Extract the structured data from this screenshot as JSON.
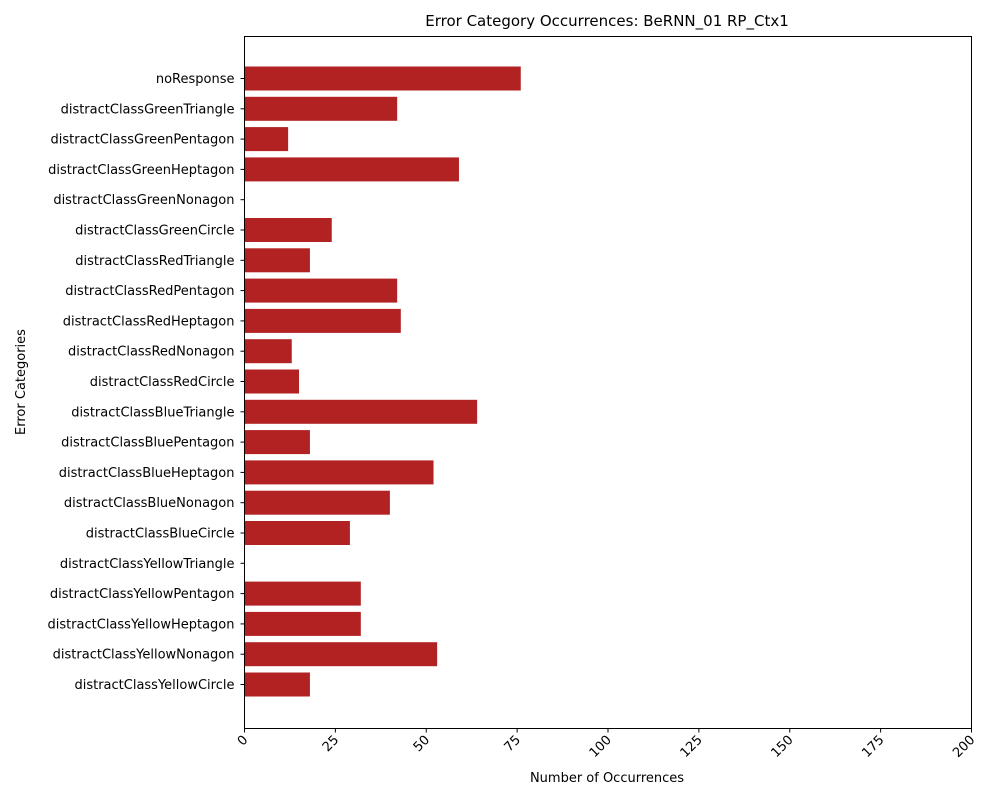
{
  "chart_data": {
    "type": "bar",
    "orientation": "horizontal",
    "title": "Error Category Occurrences: BeRNN_01 RP_Ctx1",
    "xlabel": "Number of Occurrences",
    "ylabel": "Error Categories",
    "xlim": [
      0,
      200
    ],
    "xticks": [
      0,
      25,
      50,
      75,
      100,
      125,
      150,
      175,
      200
    ],
    "xtick_rotation_deg": 45,
    "grid": false,
    "bar_color": "#b22222",
    "categories": [
      "noResponse",
      "distractClassGreenTriangle",
      "distractClassGreenPentagon",
      "distractClassGreenHeptagon",
      "distractClassGreenNonagon",
      "distractClassGreenCircle",
      "distractClassRedTriangle",
      "distractClassRedPentagon",
      "distractClassRedHeptagon",
      "distractClassRedNonagon",
      "distractClassRedCircle",
      "distractClassBlueTriangle",
      "distractClassBluePentagon",
      "distractClassBlueHeptagon",
      "distractClassBlueNonagon",
      "distractClassBlueCircle",
      "distractClassYellowTriangle",
      "distractClassYellowPentagon",
      "distractClassYellowHeptagon",
      "distractClassYellowNonagon",
      "distractClassYellowCircle"
    ],
    "values": [
      76,
      42,
      12,
      59,
      0,
      24,
      18,
      42,
      43,
      13,
      15,
      64,
      18,
      52,
      40,
      29,
      0,
      32,
      32,
      53,
      18
    ]
  }
}
